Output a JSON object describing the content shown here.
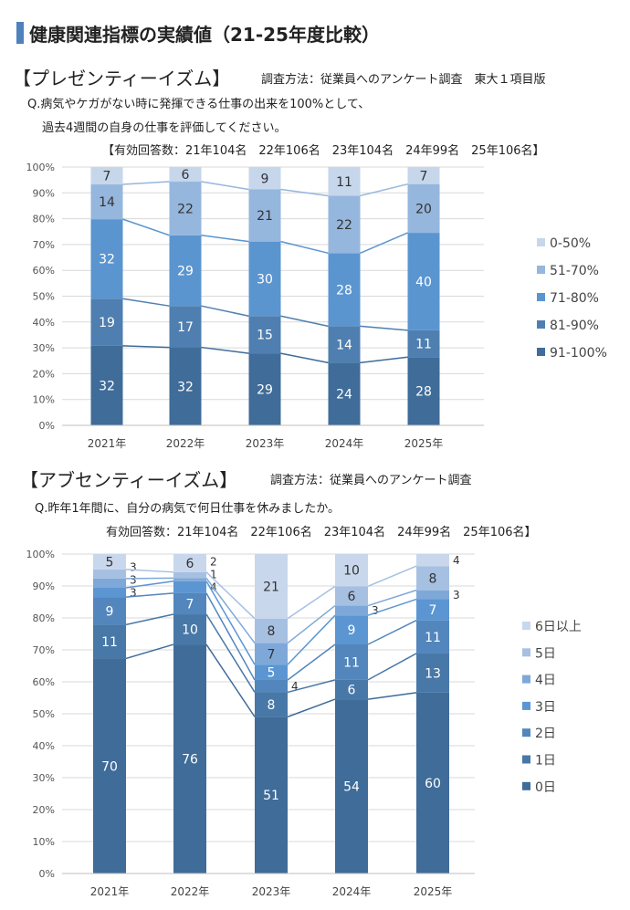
{
  "title": "健康関連指標の実績値（21-25年度比較）",
  "presenteeism": {
    "heading": "【プレゼンティーイズム】",
    "method": "調査方法：従業員へのアンケート調査　東大１項目版",
    "question1": "Q.病気やケガがない時に発揮できる仕事の出来を100%として、",
    "question2": "過去4週間の自身の仕事を評価してください。",
    "respondents": "【有効回答数：21年104名　22年106名　23年104名　24年99名　25年106名】"
  },
  "absenteeism": {
    "heading": "【アブセンティーイズム】",
    "method": "調査方法：従業員へのアンケート調査",
    "question1": "Q.昨年1年間に、自分の病気で何日仕事を休みましたか。",
    "respondents": "有効回答数：21年104名　22年106名　23年104名　24年99名　25年106名】"
  },
  "chart_data": [
    {
      "type": "bar",
      "stacked": "100%",
      "categories": [
        "2021年",
        "2022年",
        "2023年",
        "2024年",
        "2025年"
      ],
      "yticks": [
        "0%",
        "10%",
        "20%",
        "30%",
        "40%",
        "50%",
        "60%",
        "70%",
        "80%",
        "90%",
        "100%"
      ],
      "ylim": [
        0,
        100
      ],
      "grid": true,
      "legend": "right",
      "series_lines": true,
      "series": [
        {
          "name": "91-100%",
          "values": [
            32,
            32,
            29,
            24,
            28
          ],
          "color": "#3f6c99"
        },
        {
          "name": "81-90%",
          "values": [
            19,
            17,
            15,
            14,
            11
          ],
          "color": "#4f7fb0"
        },
        {
          "name": "71-80%",
          "values": [
            32,
            29,
            30,
            28,
            40
          ],
          "color": "#5b95d0"
        },
        {
          "name": "51-70%",
          "values": [
            14,
            22,
            21,
            22,
            20
          ],
          "color": "#95b6dd"
        },
        {
          "name": "0-50%",
          "values": [
            7,
            6,
            9,
            11,
            7
          ],
          "color": "#c6d6eb"
        }
      ]
    },
    {
      "type": "bar",
      "stacked": "100%",
      "categories": [
        "2021年",
        "2022年",
        "2023年",
        "2024年",
        "2025年"
      ],
      "yticks": [
        "0%",
        "10%",
        "20%",
        "30%",
        "40%",
        "50%",
        "60%",
        "70%",
        "80%",
        "90%",
        "100%"
      ],
      "ylim": [
        0,
        100
      ],
      "grid": true,
      "legend": "right",
      "series_lines": true,
      "series": [
        {
          "name": "0日",
          "values": [
            70,
            76,
            51,
            54,
            60
          ],
          "color": "#3f6c99"
        },
        {
          "name": "1日",
          "values": [
            11,
            10,
            8,
            6,
            13
          ],
          "color": "#4878a8"
        },
        {
          "name": "2日",
          "values": [
            9,
            7,
            4,
            11,
            11
          ],
          "color": "#5286bc"
        },
        {
          "name": "3日",
          "values": [
            3,
            4,
            5,
            9,
            7
          ],
          "color": "#5b96d2"
        },
        {
          "name": "4日",
          "values": [
            3,
            1,
            7,
            3,
            3
          ],
          "color": "#7ea8d8"
        },
        {
          "name": "5日",
          "values": [
            3,
            2,
            8,
            6,
            8
          ],
          "color": "#a6c0e2"
        },
        {
          "name": "6日以上",
          "values": [
            5,
            6,
            21,
            10,
            4
          ],
          "color": "#c8d7ec"
        }
      ]
    }
  ]
}
